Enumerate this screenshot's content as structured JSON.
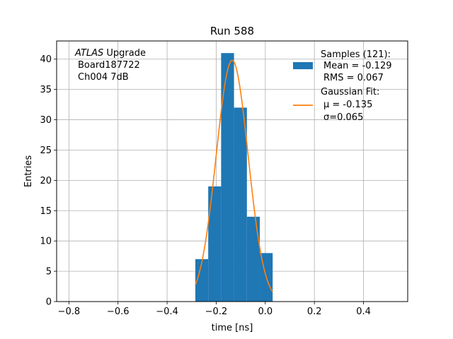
{
  "chart_data": {
    "type": "bar",
    "title": "Run 588",
    "xlabel": "time [ns]",
    "ylabel": "Entries",
    "xlim": [
      -0.85,
      0.58
    ],
    "ylim": [
      0,
      43
    ],
    "xticks": [
      -0.8,
      -0.6,
      -0.4,
      -0.2,
      0.0,
      0.2,
      0.4
    ],
    "xtick_labels": [
      "−0.8",
      "−0.6",
      "−0.4",
      "−0.2",
      "0.0",
      "0.2",
      "0.4"
    ],
    "yticks": [
      0,
      5,
      10,
      15,
      20,
      25,
      30,
      35,
      40
    ],
    "ytick_labels": [
      "0",
      "5",
      "10",
      "15",
      "20",
      "25",
      "30",
      "35",
      "40"
    ],
    "grid": true,
    "histogram": {
      "bin_edges": [
        -0.285,
        -0.2325,
        -0.18,
        -0.1275,
        -0.075,
        -0.0225,
        0.03
      ],
      "counts": [
        7,
        19,
        41,
        32,
        14,
        8
      ],
      "color": "#1f77b4"
    },
    "fit": {
      "amplitude": 39.8,
      "mu": -0.135,
      "sigma": 0.065,
      "x_range": [
        -0.285,
        0.03
      ],
      "color": "#ff7f0e"
    },
    "legend": {
      "position": "top-right",
      "samples_title": "Samples (121):",
      "samples_mean": "Mean = -0.129",
      "samples_rms": "RMS = 0.067",
      "fit_title": "Gaussian Fit:",
      "fit_mu_label": "μ = -0.135",
      "fit_sigma_label": "σ=0.065"
    },
    "annotation": {
      "position": "top-left",
      "experiment": "ATLAS",
      "experiment_suffix": " Upgrade",
      "board": "Board187722",
      "channel": "Ch004 7dB"
    }
  }
}
